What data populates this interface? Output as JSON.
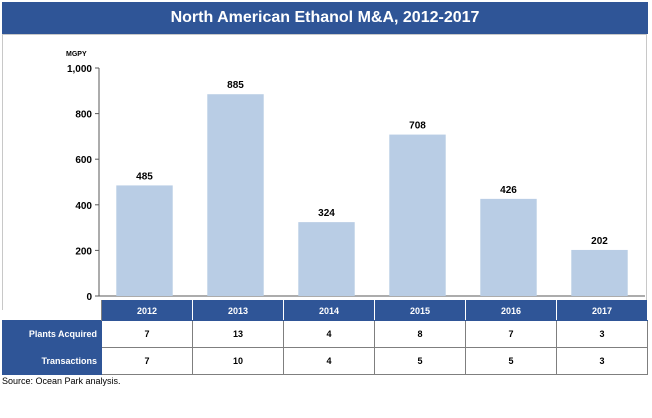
{
  "title": "North American Ethanol M&A, 2012-2017",
  "source": "Source: Ocean Park analysis.",
  "colors": {
    "header": "#2f5597",
    "bar": "#b9cde5"
  },
  "chart_data": {
    "type": "bar",
    "title": "North American Ethanol M&A, 2012-2017",
    "ylabel": "MGPY",
    "categories": [
      "2012",
      "2013",
      "2014",
      "2015",
      "2016",
      "2017"
    ],
    "values": [
      485,
      885,
      324,
      708,
      426,
      202
    ],
    "ylim": [
      0,
      1000
    ],
    "yticks": [
      "0",
      "200",
      "400",
      "600",
      "800",
      "1,000"
    ],
    "ytick_values": [
      0,
      200,
      400,
      600,
      800,
      1000
    ],
    "grid": false,
    "legend": "none"
  },
  "table": {
    "rows": [
      {
        "label": "Plants Acquired",
        "values": [
          "7",
          "13",
          "4",
          "8",
          "7",
          "3"
        ]
      },
      {
        "label": "Transactions",
        "values": [
          "7",
          "10",
          "4",
          "5",
          "5",
          "3"
        ]
      }
    ]
  }
}
